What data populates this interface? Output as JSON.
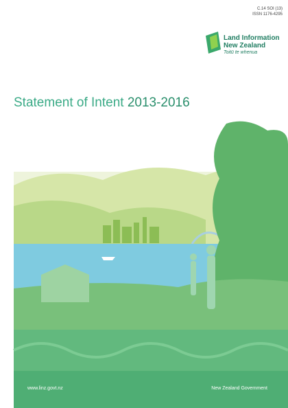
{
  "header": {
    "code": "C.14 SOI (13)",
    "issn": "ISSN 1176-4295"
  },
  "logo": {
    "line1": "Land Information",
    "line2": "New Zealand",
    "tagline": "Toitū te whenua"
  },
  "title": {
    "text": "Statement of Intent",
    "years": "2013-2016"
  },
  "footer": {
    "url": "www.linz.govt.nz",
    "government": "New Zealand Government"
  }
}
